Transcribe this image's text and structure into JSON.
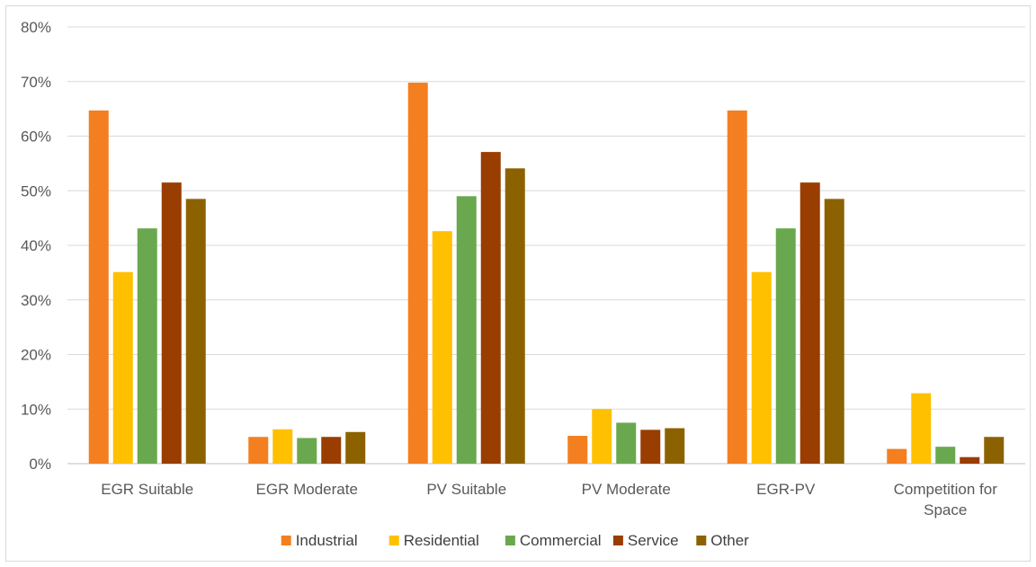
{
  "chart_data": {
    "type": "bar",
    "title": "",
    "xlabel": "",
    "ylabel": "",
    "ylim": [
      0,
      0.8
    ],
    "yticks": [
      "0%",
      "10%",
      "20%",
      "30%",
      "40%",
      "50%",
      "60%",
      "70%",
      "80%"
    ],
    "grid": true,
    "legend_position": "bottom",
    "categories": [
      [
        "EGR Suitable"
      ],
      [
        "EGR Moderate"
      ],
      [
        "PV Suitable"
      ],
      [
        "PV Moderate"
      ],
      [
        "EGR-PV"
      ],
      [
        "Competition for",
        "Space"
      ]
    ],
    "series": [
      {
        "name": "Industrial",
        "color": "#F47F20",
        "values": [
          0.647,
          0.049,
          0.698,
          0.051,
          0.647,
          0.027
        ]
      },
      {
        "name": "Residential",
        "color": "#FFC000",
        "values": [
          0.351,
          0.063,
          0.426,
          0.1,
          0.351,
          0.129
        ]
      },
      {
        "name": "Commercial",
        "color": "#6AA84F",
        "values": [
          0.431,
          0.047,
          0.49,
          0.075,
          0.431,
          0.031
        ]
      },
      {
        "name": "Service",
        "color": "#993D00",
        "values": [
          0.515,
          0.049,
          0.571,
          0.062,
          0.515,
          0.012
        ]
      },
      {
        "name": "Other",
        "color": "#8C6200",
        "values": [
          0.485,
          0.058,
          0.541,
          0.065,
          0.485,
          0.049
        ]
      }
    ]
  }
}
